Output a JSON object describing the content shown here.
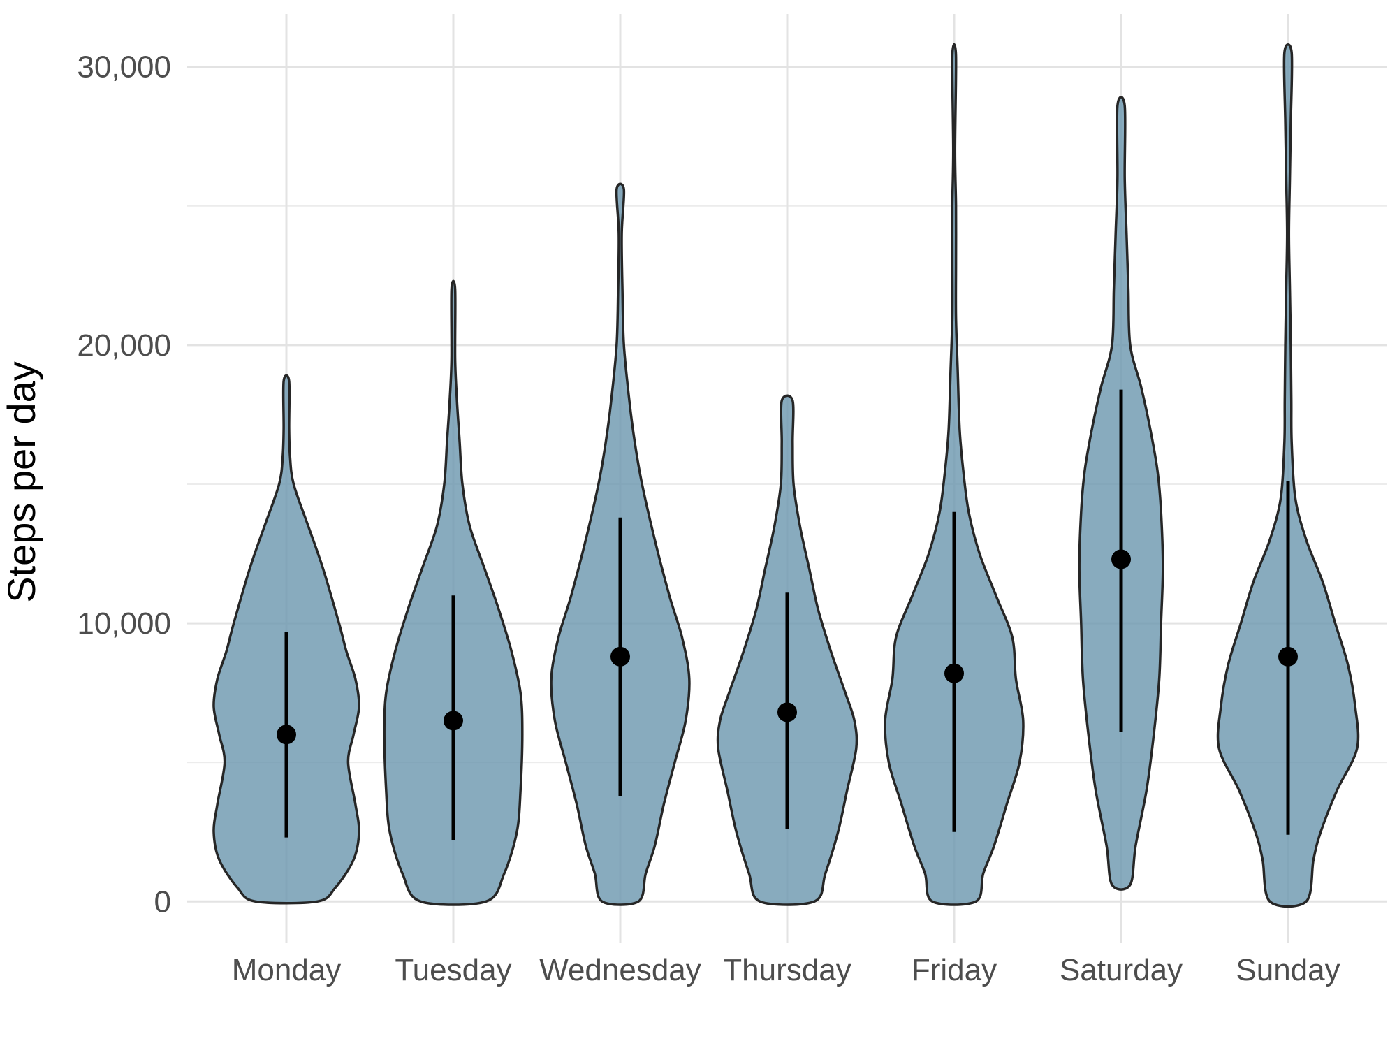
{
  "chart_data": {
    "type": "violin",
    "title": "",
    "xlabel": "",
    "ylabel": "Steps per day",
    "ylim": [
      -1500,
      31900
    ],
    "y_ticks": [
      0,
      10000,
      20000,
      30000
    ],
    "y_tick_labels": [
      "0",
      "10,000",
      "20,000",
      "30,000"
    ],
    "grid": true,
    "legend": "none",
    "colors": {
      "fill": "#6a96ae",
      "outline": "#262626",
      "point": "#000000",
      "grid": "#e3e3e3"
    },
    "categories": [
      "Monday",
      "Tuesday",
      "Wednesday",
      "Thursday",
      "Friday",
      "Saturday",
      "Sunday"
    ],
    "series": [
      {
        "category": "Monday",
        "median": 6000,
        "lower": 2300,
        "upper": 9700,
        "profile": [
          [
            0,
            0.17
          ],
          [
            500,
            0.27
          ],
          [
            1500,
            0.37
          ],
          [
            2500,
            0.4
          ],
          [
            3500,
            0.38
          ],
          [
            5000,
            0.34
          ],
          [
            6000,
            0.37
          ],
          [
            7000,
            0.4
          ],
          [
            8000,
            0.38
          ],
          [
            9000,
            0.33
          ],
          [
            10000,
            0.29
          ],
          [
            12000,
            0.2
          ],
          [
            13500,
            0.12
          ],
          [
            15000,
            0.04
          ],
          [
            16000,
            0.02
          ],
          [
            17000,
            0.015
          ],
          [
            18700,
            0.015
          ]
        ]
      },
      {
        "category": "Tuesday",
        "median": 6500,
        "lower": 2200,
        "upper": 11000,
        "profile": [
          [
            0,
            0.18
          ],
          [
            1000,
            0.28
          ],
          [
            2500,
            0.35
          ],
          [
            4000,
            0.37
          ],
          [
            6000,
            0.38
          ],
          [
            7500,
            0.37
          ],
          [
            9000,
            0.32
          ],
          [
            10500,
            0.25
          ],
          [
            12000,
            0.17
          ],
          [
            13500,
            0.09
          ],
          [
            15000,
            0.05
          ],
          [
            16500,
            0.035
          ],
          [
            18000,
            0.02
          ],
          [
            19500,
            0.01
          ],
          [
            22000,
            0.01
          ]
        ]
      },
      {
        "category": "Wednesday",
        "median": 8800,
        "lower": 3800,
        "upper": 13800,
        "profile": [
          [
            0,
            0.1
          ],
          [
            1000,
            0.14
          ],
          [
            2000,
            0.19
          ],
          [
            3500,
            0.24
          ],
          [
            5000,
            0.3
          ],
          [
            6500,
            0.36
          ],
          [
            8000,
            0.38
          ],
          [
            9500,
            0.34
          ],
          [
            11000,
            0.27
          ],
          [
            13000,
            0.19
          ],
          [
            15000,
            0.12
          ],
          [
            16500,
            0.08
          ],
          [
            18000,
            0.05
          ],
          [
            20000,
            0.02
          ],
          [
            22000,
            0.012
          ],
          [
            24000,
            0.008
          ],
          [
            25600,
            0.02
          ]
        ]
      },
      {
        "category": "Thursday",
        "median": 6800,
        "lower": 2600,
        "upper": 11100,
        "profile": [
          [
            0,
            0.15
          ],
          [
            1000,
            0.21
          ],
          [
            2500,
            0.28
          ],
          [
            4000,
            0.33
          ],
          [
            5500,
            0.38
          ],
          [
            6500,
            0.37
          ],
          [
            7500,
            0.32
          ],
          [
            9000,
            0.24
          ],
          [
            10500,
            0.17
          ],
          [
            12000,
            0.12
          ],
          [
            13500,
            0.07
          ],
          [
            15000,
            0.035
          ],
          [
            16500,
            0.03
          ],
          [
            18000,
            0.03
          ]
        ]
      },
      {
        "category": "Friday",
        "median": 8200,
        "lower": 2500,
        "upper": 14000,
        "profile": [
          [
            0,
            0.12
          ],
          [
            1000,
            0.16
          ],
          [
            2000,
            0.22
          ],
          [
            3500,
            0.29
          ],
          [
            5000,
            0.36
          ],
          [
            6500,
            0.38
          ],
          [
            8000,
            0.34
          ],
          [
            9500,
            0.32
          ],
          [
            11000,
            0.23
          ],
          [
            12500,
            0.14
          ],
          [
            14000,
            0.08
          ],
          [
            15500,
            0.05
          ],
          [
            17000,
            0.03
          ],
          [
            19000,
            0.02
          ],
          [
            21000,
            0.01
          ],
          [
            23000,
            0.01
          ],
          [
            25000,
            0.01
          ],
          [
            27000,
            0.005
          ],
          [
            30400,
            0.01
          ]
        ]
      },
      {
        "category": "Saturday",
        "median": 12300,
        "lower": 6100,
        "upper": 18400,
        "profile": [
          [
            600,
            0.05
          ],
          [
            2000,
            0.08
          ],
          [
            4000,
            0.14
          ],
          [
            6000,
            0.18
          ],
          [
            8000,
            0.21
          ],
          [
            10000,
            0.22
          ],
          [
            12000,
            0.23
          ],
          [
            14000,
            0.22
          ],
          [
            15500,
            0.2
          ],
          [
            17000,
            0.16
          ],
          [
            18500,
            0.11
          ],
          [
            20000,
            0.05
          ],
          [
            22000,
            0.04
          ],
          [
            24000,
            0.03
          ],
          [
            26000,
            0.02
          ],
          [
            28600,
            0.02
          ]
        ]
      },
      {
        "category": "Sunday",
        "median": 8800,
        "lower": 2400,
        "upper": 15100,
        "profile": [
          [
            0,
            0.1
          ],
          [
            1500,
            0.14
          ],
          [
            2500,
            0.18
          ],
          [
            4000,
            0.27
          ],
          [
            5500,
            0.38
          ],
          [
            7000,
            0.37
          ],
          [
            8500,
            0.33
          ],
          [
            10000,
            0.26
          ],
          [
            11500,
            0.19
          ],
          [
            13000,
            0.1
          ],
          [
            14500,
            0.04
          ],
          [
            16500,
            0.02
          ],
          [
            18000,
            0.018
          ],
          [
            20000,
            0.015
          ],
          [
            22000,
            0.01
          ],
          [
            24000,
            0.005
          ],
          [
            26000,
            0.01
          ],
          [
            28000,
            0.015
          ],
          [
            30500,
            0.02
          ]
        ]
      }
    ]
  }
}
